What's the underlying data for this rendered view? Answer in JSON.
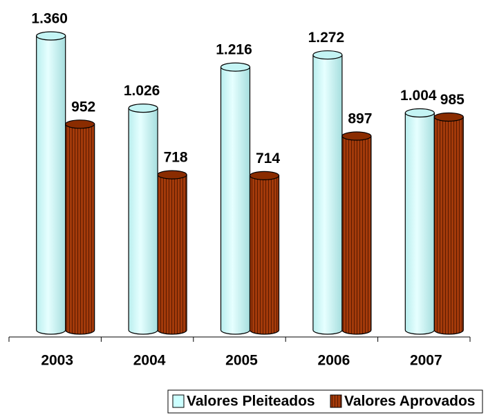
{
  "chart_data": {
    "type": "bar",
    "categories": [
      "2003",
      "2004",
      "2005",
      "2006",
      "2007"
    ],
    "series": [
      {
        "name": "Valores Pleiteados",
        "color": "#ccffff",
        "values": [
          1360,
          1026,
          1216,
          1272,
          1004
        ],
        "value_labels": [
          "1.360",
          "1.026",
          "1.216",
          "1.272",
          "1.004"
        ]
      },
      {
        "name": "Valores Aprovados",
        "color": "#993300",
        "values": [
          952,
          718,
          714,
          897,
          985
        ],
        "value_labels": [
          "952",
          "718",
          "714",
          "897",
          "985"
        ]
      }
    ]
  }
}
